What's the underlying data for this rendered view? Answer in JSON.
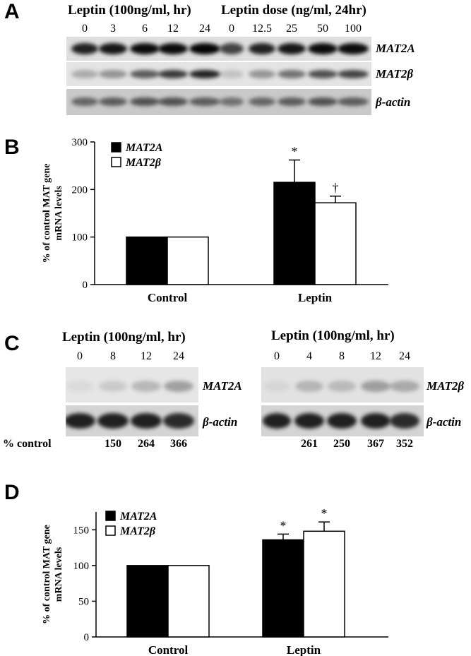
{
  "panel_a": {
    "letter": "A",
    "header_time": "Leptin (100ng/ml, hr)",
    "header_dose": "Leptin dose (ng/ml, 24hr)",
    "lanes": [
      "0",
      "3",
      "6",
      "12",
      "24",
      "0",
      "12.5",
      "25",
      "50",
      "100"
    ],
    "blots": [
      "MAT2A",
      "MAT2β",
      "β-actin"
    ]
  },
  "panel_c": {
    "letter": "C",
    "left_header": "Leptin (100ng/ml, hr)",
    "right_header": "Leptin (100ng/ml, hr)",
    "left_lanes": [
      "0",
      "8",
      "12",
      "24"
    ],
    "right_lanes": [
      "0",
      "4",
      "8",
      "12",
      "24"
    ],
    "left_blots": [
      "MAT2A",
      "β-actin"
    ],
    "right_blots": [
      "MAT2β",
      "β-actin"
    ],
    "pct_label": "% control",
    "left_pct": [
      "",
      "150",
      "264",
      "366"
    ],
    "right_pct": [
      "",
      "261",
      "250",
      "367",
      "352"
    ]
  },
  "colors": {
    "mat2a": "#000000",
    "mat2b": "#ffffff"
  },
  "chart_data": [
    {
      "id": "B",
      "letter": "B",
      "type": "bar",
      "categories": [
        "Control",
        "Leptin"
      ],
      "series": [
        {
          "name": "MAT2A",
          "values": [
            100,
            215
          ],
          "errors": [
            0,
            47
          ],
          "marks": [
            "",
            "*"
          ]
        },
        {
          "name": "MAT2β",
          "values": [
            100,
            172
          ],
          "errors": [
            0,
            14
          ],
          "marks": [
            "",
            "†"
          ]
        }
      ],
      "ylabel": "% of control MAT gene mRNA levels",
      "ylim": [
        0,
        300
      ],
      "yticks": [
        0,
        100,
        200,
        300
      ],
      "grid": false,
      "legend": "top-left"
    },
    {
      "id": "D",
      "letter": "D",
      "type": "bar",
      "categories": [
        "Control",
        "Leptin"
      ],
      "series": [
        {
          "name": "MAT2A",
          "values": [
            100,
            136
          ],
          "errors": [
            0,
            8
          ],
          "marks": [
            "",
            "*"
          ]
        },
        {
          "name": "MAT2β",
          "values": [
            100,
            148
          ],
          "errors": [
            0,
            13
          ],
          "marks": [
            "",
            "*"
          ]
        }
      ],
      "ylabel": "% of control MAT gene mRNA levels",
      "ylim": [
        0,
        175
      ],
      "yticks": [
        0,
        50,
        100,
        150
      ],
      "grid": false,
      "legend": "top-left"
    }
  ]
}
